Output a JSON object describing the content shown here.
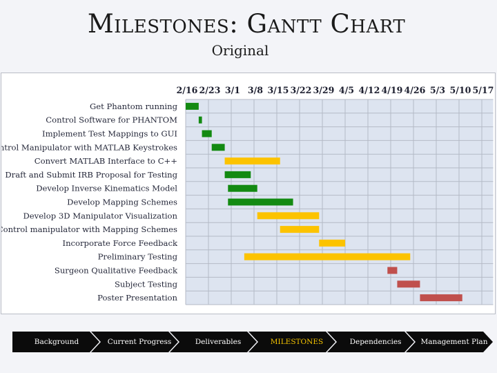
{
  "page": {
    "title": "Milestones: Gantt Chart",
    "subtitle": "Original"
  },
  "colors": {
    "green": "#138a12",
    "yellow": "#fcc300",
    "red": "#c0504d",
    "grid_fill": "#dde4f0",
    "grid_line": "#b4bac6",
    "active_nav": "#f5c400"
  },
  "chart_data": {
    "type": "gantt",
    "x_axis_dates": [
      "2/16",
      "2/23",
      "3/1",
      "3/8",
      "3/15",
      "3/22",
      "3/29",
      "4/5",
      "4/12",
      "4/19",
      "4/26",
      "5/3",
      "5/10",
      "5/17"
    ],
    "tasks": [
      {
        "name": "Get Phantom running",
        "start": "2/16",
        "end": "2/20",
        "color": "green"
      },
      {
        "name": "Control Software for PHANTOM",
        "start": "2/20",
        "end": "2/21",
        "color": "green"
      },
      {
        "name": "Implement Test Mappings to GUI",
        "start": "2/21",
        "end": "2/24",
        "color": "green"
      },
      {
        "name": "Control Manipulator with MATLAB Keystrokes",
        "start": "2/24",
        "end": "2/28",
        "color": "green"
      },
      {
        "name": "Convert MATLAB Interface to C++",
        "start": "2/28",
        "end": "3/17",
        "color": "yellow"
      },
      {
        "name": "Draft and Submit IRB Proposal for Testing",
        "start": "2/28",
        "end": "3/8",
        "color": "green"
      },
      {
        "name": "Develop Inverse Kinematics Model",
        "start": "3/1",
        "end": "3/10",
        "color": "green"
      },
      {
        "name": "Develop Mapping Schemes",
        "start": "3/1",
        "end": "3/21",
        "color": "green"
      },
      {
        "name": "Develop 3D Manipulator Visualization",
        "start": "3/10",
        "end": "3/29",
        "color": "yellow"
      },
      {
        "name": "Control manipulator with Mapping Schemes",
        "start": "3/17",
        "end": "3/29",
        "color": "yellow"
      },
      {
        "name": "Incorporate Force Feedback",
        "start": "3/29",
        "end": "4/6",
        "color": "yellow"
      },
      {
        "name": "Preliminary Testing",
        "start": "3/6",
        "end": "4/26",
        "color": "yellow"
      },
      {
        "name": "Surgeon Qualitative Feedback",
        "start": "4/19",
        "end": "4/22",
        "color": "red"
      },
      {
        "name": "Subject Testing",
        "start": "4/22",
        "end": "4/29",
        "color": "red"
      },
      {
        "name": "Poster Presentation",
        "start": "4/29",
        "end": "5/12",
        "color": "red"
      }
    ]
  },
  "nav": {
    "items": [
      {
        "label": "Background",
        "active": false
      },
      {
        "label": "Current Progress",
        "active": false
      },
      {
        "label": "Deliverables",
        "active": false
      },
      {
        "label": "MILESTONES",
        "active": true
      },
      {
        "label": "Dependencies",
        "active": false
      },
      {
        "label": "Management Plan",
        "active": false
      }
    ]
  }
}
